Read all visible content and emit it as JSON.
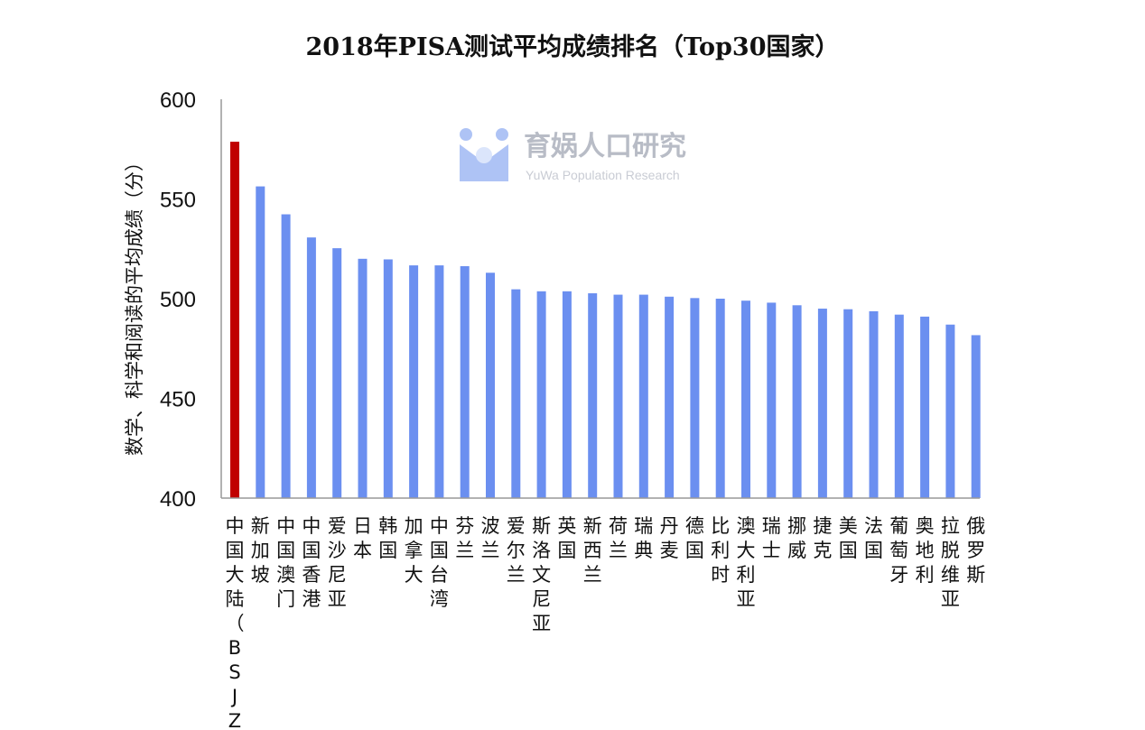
{
  "watermark": {
    "name": "育娲人口研究",
    "subtitle": "YuWa Population Research"
  },
  "chart_data": {
    "type": "bar",
    "title": "2018年PISA测试平均成绩排名（Top30国家）",
    "ylabel": "数学、科学和阅读的平均成绩（分）",
    "xlabel": "",
    "ylim": [
      400,
      600
    ],
    "yticks": [
      400,
      450,
      500,
      550,
      600
    ],
    "grid": false,
    "categories": [
      "中国大陆（BSJZ）",
      "新加坡",
      "中国澳门",
      "中国香港",
      "爱沙尼亚",
      "日本",
      "韩国",
      "加拿大",
      "中国台湾",
      "芬兰",
      "波兰",
      "爱尔兰",
      "斯洛文尼亚",
      "英国",
      "新西兰",
      "荷兰",
      "瑞典",
      "丹麦",
      "德国",
      "比利时",
      "澳大利亚",
      "瑞士",
      "挪威",
      "捷克",
      "美国",
      "法国",
      "葡萄牙",
      "奥地利",
      "拉脱维亚",
      "俄罗斯"
    ],
    "values": [
      578.7,
      556.3,
      542.3,
      530.7,
      525.3,
      520.0,
      519.7,
      516.7,
      516.7,
      516.3,
      513.0,
      504.7,
      503.7,
      503.7,
      502.7,
      502.0,
      502.0,
      501.0,
      500.3,
      500.0,
      499.0,
      498.0,
      496.7,
      495.0,
      494.7,
      493.7,
      492.0,
      491.0,
      487.0,
      481.7
    ],
    "bar_color": "#6b8ff0",
    "highlight_color": "#c00000",
    "highlight_index": 0
  }
}
